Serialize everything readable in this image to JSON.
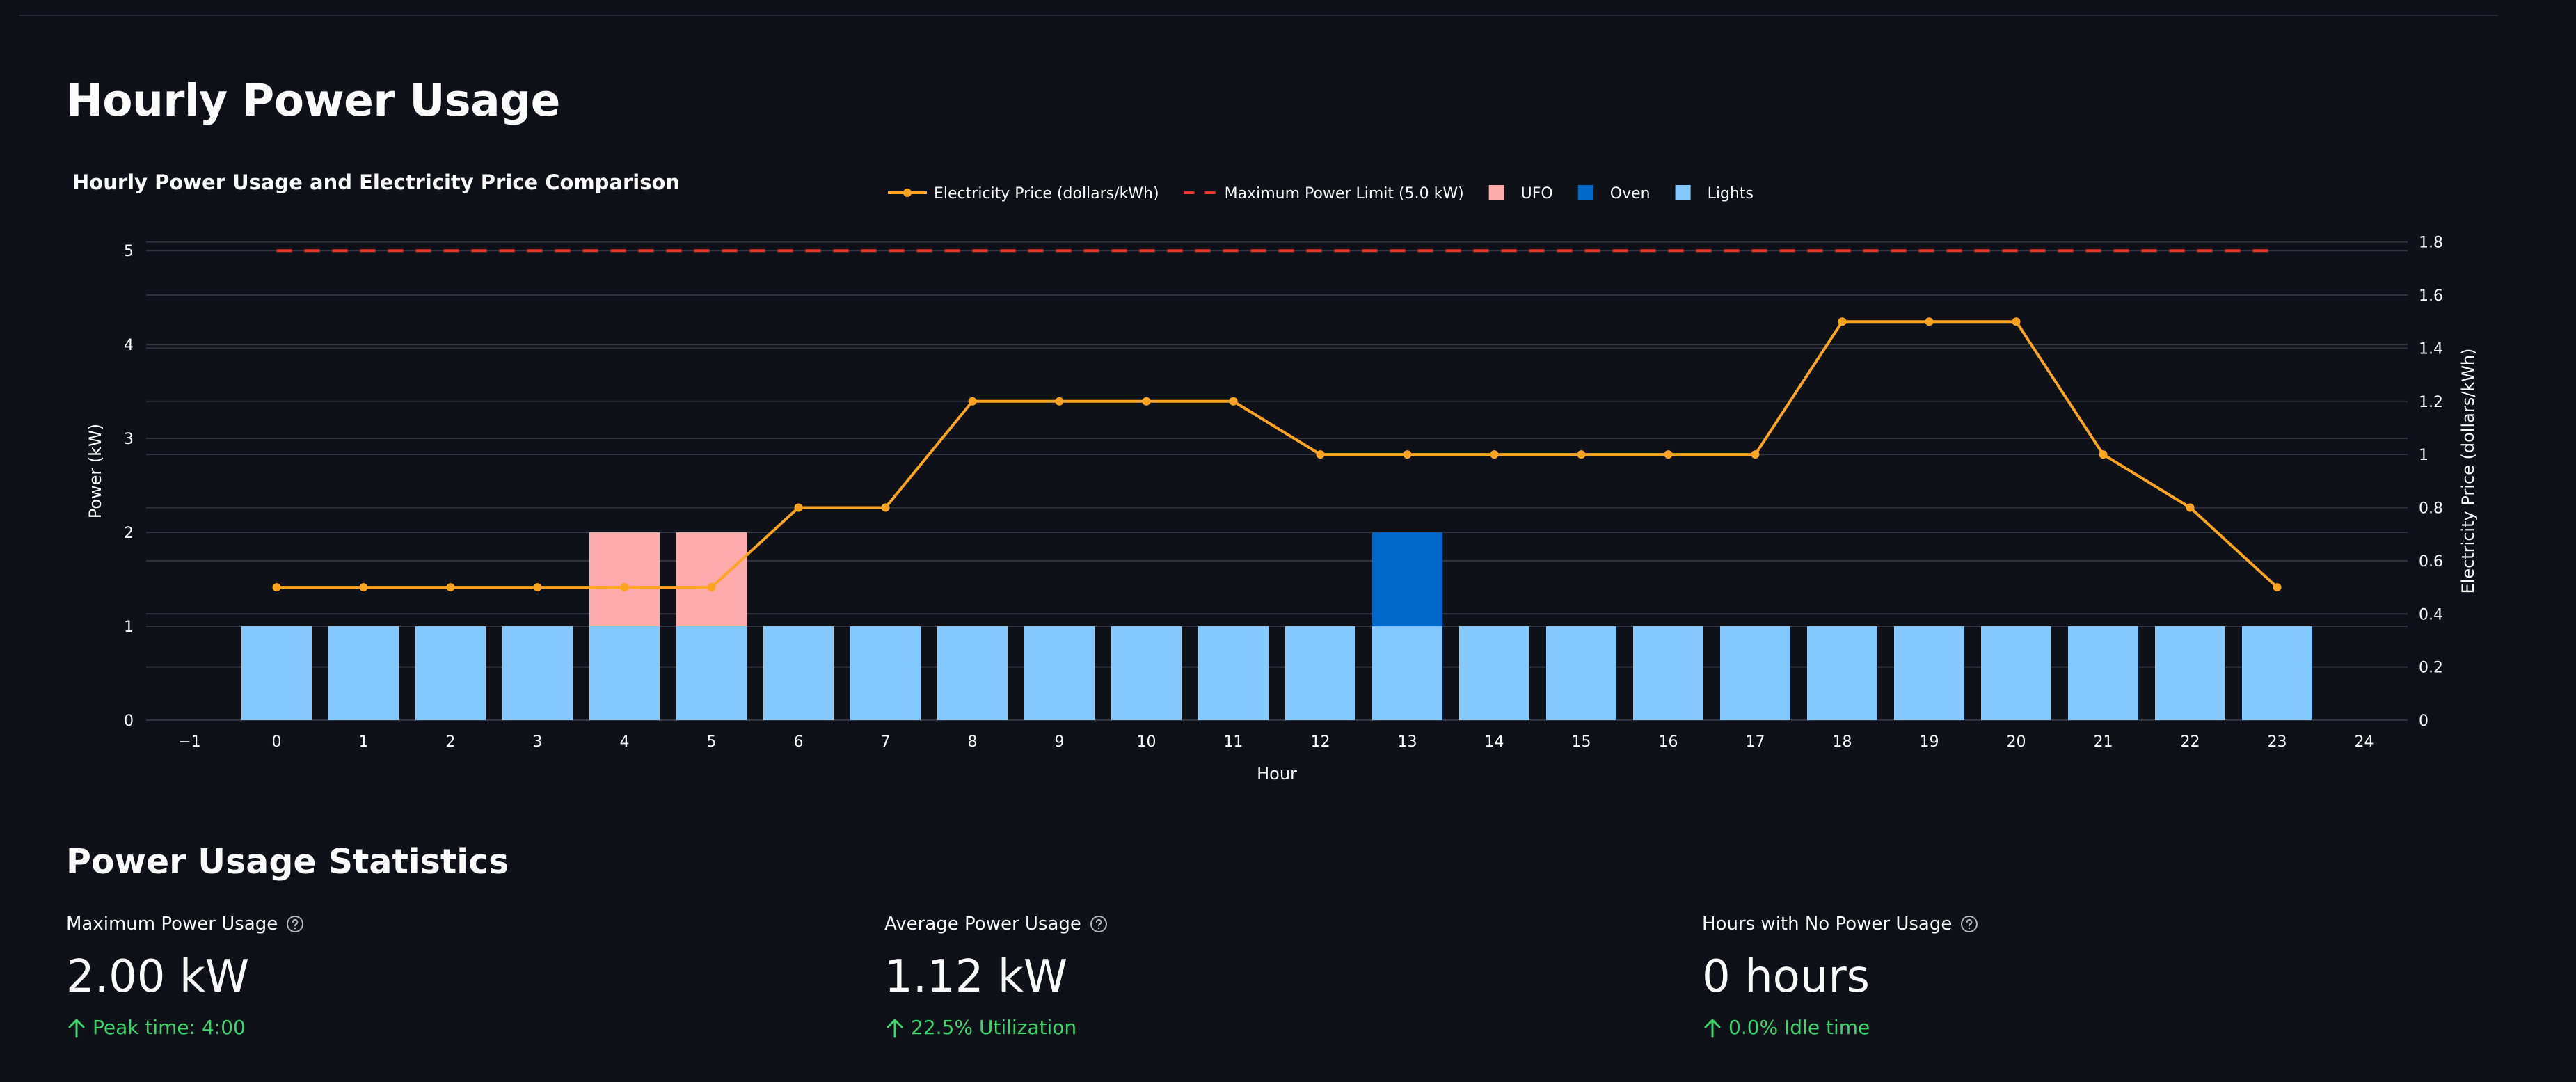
{
  "page": {
    "title": "Hourly Power Usage"
  },
  "stats": {
    "title": "Power Usage Statistics",
    "metrics": [
      {
        "label": "Maximum Power Usage",
        "value": "2.00 kW",
        "delta": "Peak time: 4:00"
      },
      {
        "label": "Average Power Usage",
        "value": "1.12 kW",
        "delta": "22.5% Utilization"
      },
      {
        "label": "Hours with No Power Usage",
        "value": "0 hours",
        "delta": "0.0% Idle time"
      }
    ],
    "help_icon": "question-circle-icon",
    "delta_icon": "arrow-up-icon",
    "delta_color": "#3dd56d"
  },
  "chart_data": {
    "type": "bar",
    "title": "Hourly Power Usage and Electricity Price Comparison",
    "xlabel": "Hour",
    "ylabel": "Power (kW)",
    "y2label": "Electricity Price (dollars/kWh)",
    "xlim": [
      -1.5,
      24.5
    ],
    "ylim": [
      0,
      5.15
    ],
    "y2lim": [
      0,
      1.82
    ],
    "xticks": [
      -1,
      0,
      1,
      2,
      3,
      4,
      5,
      6,
      7,
      8,
      9,
      10,
      11,
      12,
      13,
      14,
      15,
      16,
      17,
      18,
      19,
      20,
      21,
      22,
      23,
      24
    ],
    "yticks": [
      0,
      1,
      2,
      3,
      4,
      5
    ],
    "y2ticks": [
      0,
      0.2,
      0.4,
      0.6,
      0.8,
      1,
      1.2,
      1.4,
      1.6,
      1.8
    ],
    "x": [
      0,
      1,
      2,
      3,
      4,
      5,
      6,
      7,
      8,
      9,
      10,
      11,
      12,
      13,
      14,
      15,
      16,
      17,
      18,
      19,
      20,
      21,
      22,
      23
    ],
    "stacked": true,
    "grid": true,
    "legend_position": "top",
    "series": [
      {
        "name": "Lights",
        "kind": "bar",
        "color": "#83c9ff",
        "values": [
          1,
          1,
          1,
          1,
          1,
          1,
          1,
          1,
          1,
          1,
          1,
          1,
          1,
          1,
          1,
          1,
          1,
          1,
          1,
          1,
          1,
          1,
          1,
          1
        ]
      },
      {
        "name": "Oven",
        "kind": "bar",
        "color": "#0068c9",
        "values": [
          0,
          0,
          0,
          0,
          0,
          0,
          0,
          0,
          0,
          0,
          0,
          0,
          0,
          1,
          0,
          0,
          0,
          0,
          0,
          0,
          0,
          0,
          0,
          0
        ]
      },
      {
        "name": "UFO",
        "kind": "bar",
        "color": "#ffabab",
        "values": [
          0,
          0,
          0,
          0,
          1,
          1,
          0,
          0,
          0,
          0,
          0,
          0,
          0,
          0,
          0,
          0,
          0,
          0,
          0,
          0,
          0,
          0,
          0,
          0
        ]
      },
      {
        "name": "Electricity Price (dollars/kWh)",
        "kind": "line",
        "axis": "y2",
        "color": "#ffa421",
        "values": [
          0.5,
          0.5,
          0.5,
          0.5,
          0.5,
          0.5,
          0.8,
          0.8,
          1.2,
          1.2,
          1.2,
          1.2,
          1.0,
          1.0,
          1.0,
          1.0,
          1.0,
          1.0,
          1.5,
          1.5,
          1.5,
          1.0,
          0.8,
          0.5
        ]
      },
      {
        "name": "Maximum Power Limit (5.0 kW)",
        "kind": "hline",
        "color": "#e8352a",
        "y": 5.0,
        "x_range": [
          0,
          23
        ]
      }
    ],
    "legend_order": [
      "Electricity Price (dollars/kWh)",
      "Maximum Power Limit (5.0 kW)",
      "UFO",
      "Oven",
      "Lights"
    ]
  }
}
